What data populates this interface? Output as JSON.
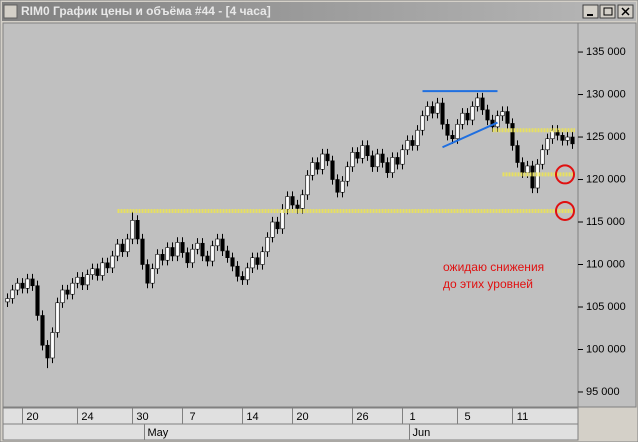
{
  "window_title": "RIM0 График цены и объёма #44 - [4 часа]",
  "chart_data": {
    "type": "candlestick",
    "up_color": "#ffffff",
    "down_color": "#000000",
    "background": "#c0c0c0",
    "xlim": [
      -0.5,
      113.5
    ],
    "ylim": [
      93350,
      138300
    ],
    "yticks": [
      {
        "value": 95000,
        "label": "95 000"
      },
      {
        "value": 100000,
        "label": "100 000"
      },
      {
        "value": 105000,
        "label": "105 000"
      },
      {
        "value": 110000,
        "label": "110 000"
      },
      {
        "value": 115000,
        "label": "115 000"
      },
      {
        "value": 120000,
        "label": "120 000"
      },
      {
        "value": 125000,
        "label": "125 000"
      },
      {
        "value": 130000,
        "label": "130 000"
      },
      {
        "value": 135000,
        "label": "135 000"
      }
    ],
    "xticks": [
      {
        "value": 5,
        "label": "20"
      },
      {
        "value": 16,
        "label": "24"
      },
      {
        "value": 27,
        "label": "30"
      },
      {
        "value": 37,
        "label": "7"
      },
      {
        "value": 49,
        "label": "14"
      },
      {
        "value": 59,
        "label": "20"
      },
      {
        "value": 71,
        "label": "26"
      },
      {
        "value": 81,
        "label": "1"
      },
      {
        "value": 92,
        "label": "5"
      },
      {
        "value": 103,
        "label": "11"
      }
    ],
    "months": [
      {
        "value": 28,
        "label": "May"
      },
      {
        "value": 81,
        "label": "Jun"
      }
    ],
    "candles": [
      [
        105600,
        106600,
        105000,
        106000
      ],
      [
        106000,
        107600,
        105400,
        107000
      ],
      [
        107000,
        108400,
        106400,
        107800
      ],
      [
        107800,
        108400,
        106600,
        107200
      ],
      [
        107200,
        108900,
        106600,
        108300
      ],
      [
        108300,
        108900,
        106900,
        107500
      ],
      [
        107500,
        108100,
        103400,
        104000
      ],
      [
        104000,
        104600,
        99900,
        100500
      ],
      [
        100500,
        101100,
        97800,
        99000
      ],
      [
        99000,
        102600,
        98400,
        102000
      ],
      [
        102000,
        106100,
        101400,
        105500
      ],
      [
        105500,
        107600,
        104900,
        107000
      ],
      [
        107000,
        107600,
        105900,
        106500
      ],
      [
        106500,
        108400,
        105900,
        107800
      ],
      [
        107800,
        109100,
        107200,
        108500
      ],
      [
        108500,
        109100,
        107000,
        107600
      ],
      [
        107600,
        109400,
        107000,
        108800
      ],
      [
        108800,
        110100,
        108200,
        109500
      ],
      [
        109500,
        110100,
        108100,
        108700
      ],
      [
        108700,
        110800,
        108100,
        110200
      ],
      [
        110200,
        110800,
        109000,
        109600
      ],
      [
        109600,
        111600,
        109000,
        111000
      ],
      [
        111000,
        113000,
        110400,
        112400
      ],
      [
        112400,
        113000,
        110900,
        111500
      ],
      [
        111500,
        113600,
        110900,
        113000
      ],
      [
        113000,
        116200,
        112400,
        115200
      ],
      [
        115200,
        115800,
        112400,
        113000
      ],
      [
        113000,
        113600,
        109400,
        110000
      ],
      [
        110000,
        110600,
        107200,
        107800
      ],
      [
        107800,
        110100,
        107200,
        109500
      ],
      [
        109500,
        111800,
        108900,
        111200
      ],
      [
        111200,
        111800,
        109900,
        110500
      ],
      [
        110500,
        112600,
        109900,
        112000
      ],
      [
        112000,
        112600,
        110400,
        111000
      ],
      [
        111000,
        113200,
        110400,
        112600
      ],
      [
        112600,
        113200,
        110800,
        111400
      ],
      [
        111400,
        112000,
        109600,
        110200
      ],
      [
        110200,
        112400,
        109600,
        111800
      ],
      [
        111800,
        113100,
        111200,
        112500
      ],
      [
        112500,
        113100,
        110400,
        111000
      ],
      [
        111000,
        111600,
        109800,
        110400
      ],
      [
        110400,
        112800,
        109800,
        112200
      ],
      [
        112200,
        113600,
        111600,
        113000
      ],
      [
        113000,
        113600,
        111000,
        111600
      ],
      [
        111600,
        112200,
        110200,
        110800
      ],
      [
        110800,
        111400,
        109200,
        109800
      ],
      [
        109800,
        110400,
        108000,
        108600
      ],
      [
        108600,
        109200,
        107600,
        108200
      ],
      [
        108200,
        110200,
        107600,
        109600
      ],
      [
        109600,
        111400,
        109000,
        110800
      ],
      [
        110800,
        111400,
        109400,
        110000
      ],
      [
        110000,
        112100,
        109400,
        111500
      ],
      [
        111500,
        113800,
        110900,
        113200
      ],
      [
        113200,
        115600,
        112600,
        115000
      ],
      [
        115000,
        115600,
        113600,
        114200
      ],
      [
        114200,
        117100,
        113600,
        116500
      ],
      [
        116500,
        118600,
        115900,
        118000
      ],
      [
        118000,
        118600,
        116400,
        117000
      ],
      [
        117000,
        117600,
        116000,
        116600
      ],
      [
        116600,
        118800,
        116000,
        118200
      ],
      [
        118200,
        121100,
        117600,
        120500
      ],
      [
        120500,
        122600,
        119900,
        122000
      ],
      [
        122000,
        122600,
        120600,
        121200
      ],
      [
        121200,
        123600,
        120600,
        123000
      ],
      [
        123000,
        123600,
        121600,
        122200
      ],
      [
        122200,
        122800,
        119400,
        120000
      ],
      [
        120000,
        120600,
        117900,
        118500
      ],
      [
        118500,
        120400,
        117900,
        119800
      ],
      [
        119800,
        122100,
        119200,
        121500
      ],
      [
        121500,
        123800,
        120900,
        123200
      ],
      [
        123200,
        123800,
        121900,
        122500
      ],
      [
        122500,
        124600,
        121900,
        124000
      ],
      [
        124000,
        124600,
        122200,
        122800
      ],
      [
        122800,
        123400,
        120900,
        121500
      ],
      [
        121500,
        123600,
        120900,
        123000
      ],
      [
        123000,
        123600,
        121400,
        122000
      ],
      [
        122000,
        122600,
        120200,
        120800
      ],
      [
        120800,
        123200,
        120200,
        122600
      ],
      [
        122600,
        123200,
        121200,
        121800
      ],
      [
        121800,
        124100,
        121200,
        123500
      ],
      [
        123500,
        125200,
        122900,
        124600
      ],
      [
        124600,
        125200,
        123400,
        124000
      ],
      [
        124000,
        126400,
        123400,
        125800
      ],
      [
        125800,
        128100,
        125200,
        127500
      ],
      [
        127500,
        129200,
        126900,
        128600
      ],
      [
        128600,
        129200,
        127200,
        127800
      ],
      [
        127800,
        129600,
        127200,
        129000
      ],
      [
        129000,
        129600,
        125900,
        126500
      ],
      [
        126500,
        127100,
        124600,
        125200
      ],
      [
        125200,
        125800,
        124200,
        124800
      ],
      [
        124800,
        127100,
        124200,
        126500
      ],
      [
        126500,
        128400,
        125900,
        127800
      ],
      [
        127800,
        128400,
        126400,
        127000
      ],
      [
        127000,
        129200,
        126400,
        128600
      ],
      [
        128600,
        130200,
        128000,
        129600
      ],
      [
        129600,
        130200,
        127600,
        128200
      ],
      [
        128200,
        128800,
        126400,
        127000
      ],
      [
        127000,
        127600,
        125600,
        126200
      ],
      [
        126200,
        128100,
        125600,
        127500
      ],
      [
        127500,
        128600,
        126900,
        128000
      ],
      [
        128000,
        128600,
        126000,
        126600
      ],
      [
        126600,
        127200,
        123400,
        124000
      ],
      [
        124000,
        124600,
        121400,
        122000
      ],
      [
        122000,
        122600,
        120200,
        120800
      ],
      [
        120800,
        122200,
        120200,
        121600
      ],
      [
        121600,
        122200,
        118400,
        119000
      ],
      [
        119000,
        122400,
        118400,
        121800
      ],
      [
        121800,
        124100,
        121200,
        123500
      ],
      [
        123500,
        125400,
        122900,
        124800
      ],
      [
        124800,
        126400,
        124200,
        125800
      ],
      [
        125800,
        126400,
        124600,
        125200
      ],
      [
        125200,
        125800,
        124000,
        124600
      ],
      [
        124600,
        125600,
        124000,
        125000
      ],
      [
        125000,
        125600,
        123600,
        124200
      ]
    ],
    "levels": [
      {
        "value": 116300,
        "from": 22,
        "color": "#e8e060",
        "circle": true
      },
      {
        "value": 120600,
        "from": 99,
        "color": "#e8e060",
        "circle": true
      },
      {
        "value": 125800,
        "from": 97,
        "color": "#e8e060",
        "circle": false
      }
    ],
    "trend_lines": [
      {
        "points": [
          [
            83,
            130400
          ],
          [
            98,
            130400
          ]
        ],
        "color": "#1f6fe0"
      },
      {
        "points": [
          [
            87,
            123800
          ],
          [
            98,
            126700
          ]
        ],
        "color": "#1f6fe0"
      }
    ],
    "annotation": {
      "lines": [
        "ожидаю снижения",
        "до этих уровней"
      ],
      "color": "#e01010"
    }
  }
}
